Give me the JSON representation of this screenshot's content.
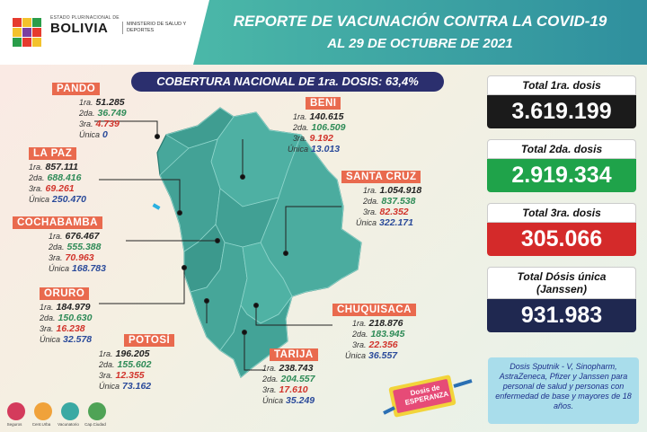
{
  "header": {
    "logo_small": "ESTADO PLURINACIONAL DE",
    "logo_big": "BOLIVIA",
    "ministry": "MINISTERIO DE SALUD Y DEPORTES",
    "title_line1": "REPORTE DE VACUNACIÓN CONTRA LA COVID-19",
    "title_line2": "AL 29 DE OCTUBRE DE 2021"
  },
  "coverage": "COBERTURA NACIONAL DE 1ra. DOSIS: 63,4%",
  "labels": {
    "d1": "1ra.",
    "d2": "2da.",
    "d3": "3ra.",
    "du": "Única"
  },
  "departments": {
    "pando": {
      "name": "PANDO",
      "d1": "51.285",
      "d2": "36.749",
      "d3": "4.739",
      "du": "0"
    },
    "la_paz": {
      "name": "LA PAZ",
      "d1": "857.111",
      "d2": "688.416",
      "d3": "69.261",
      "du": "250.470"
    },
    "cochabamba": {
      "name": "COCHABAMBA",
      "d1": "676.467",
      "d2": "555.388",
      "d3": "70.963",
      "du": "168.783"
    },
    "oruro": {
      "name": "ORURO",
      "d1": "184.979",
      "d2": "150.630",
      "d3": "16.238",
      "du": "32.578"
    },
    "potosi": {
      "name": "POTOSÍ",
      "d1": "196.205",
      "d2": "155.602",
      "d3": "12.355",
      "du": "73.162"
    },
    "tarija": {
      "name": "TARIJA",
      "d1": "238.743",
      "d2": "204.557",
      "d3": "17.610",
      "du": "35.249"
    },
    "chuquisaca": {
      "name": "CHUQUISACA",
      "d1": "218.876",
      "d2": "183.945",
      "d3": "22.356",
      "du": "36.557"
    },
    "santa_cruz": {
      "name": "SANTA CRUZ",
      "d1": "1.054.918",
      "d2": "837.538",
      "d3": "82.352",
      "du": "322.171"
    },
    "beni": {
      "name": "BENI",
      "d1": "140.615",
      "d2": "106.509",
      "d3": "9.192",
      "du": "13.013"
    }
  },
  "totals": {
    "first": {
      "label": "Total 1ra. dosis",
      "value": "3.619.199"
    },
    "second": {
      "label": "Total 2da. dosis",
      "value": "2.919.334"
    },
    "third": {
      "label": "Total 3ra. dosis",
      "value": "305.066"
    },
    "single": {
      "label": "Total Dósis única (Janssen)",
      "value": "931.983"
    }
  },
  "note": "Dosis Sputnik - V, Sinopharm, AstraZeneca, Pfizer y Janssen para personal de salud y personas con enfermedad de base y mayores de 18 años.",
  "badge_text": "Dosis de ESPERANZA",
  "bottom_labels": [
    "Seguros",
    "Cent.Urba",
    "Vacunatorio",
    "Cap.Ciudad"
  ],
  "colors": {
    "accent": "#3aa9a3",
    "tag": "#e96a4e",
    "map": "#45a49a",
    "navy": "#2b2f6e"
  }
}
